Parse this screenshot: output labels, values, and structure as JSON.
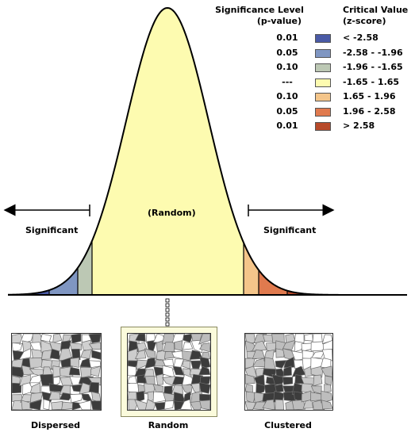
{
  "legend": {
    "sig_header_line1": "Significance Level",
    "sig_header_line2": "(p-value)",
    "crit_header_line1": "Critical Value",
    "crit_header_line2": "(z-score)",
    "rows": [
      {
        "p": "0.01",
        "z": "< -2.58",
        "color": "#4a5aa6"
      },
      {
        "p": "0.05",
        "z": "-2.58 - -1.96",
        "color": "#7f96c2"
      },
      {
        "p": "0.10",
        "z": "-1.96 - -1.65",
        "color": "#bcc8b4"
      },
      {
        "p": "---",
        "z": "-1.65 - 1.65",
        "color": "#fdfbb0"
      },
      {
        "p": "0.10",
        "z": "1.65 - 1.96",
        "color": "#f4c58a"
      },
      {
        "p": "0.05",
        "z": "1.96 - 2.58",
        "color": "#e07a4e"
      },
      {
        "p": "0.01",
        "z": "> 2.58",
        "color": "#b84a2a"
      }
    ]
  },
  "curve": {
    "random_label": "(Random)",
    "significant_left": "Significant",
    "significant_right": "Significant"
  },
  "maps": [
    {
      "label": "Dispersed",
      "pattern": "dispersed"
    },
    {
      "label": "Random",
      "pattern": "random",
      "highlighted": true
    },
    {
      "label": "Clustered",
      "pattern": "clustered"
    }
  ]
}
